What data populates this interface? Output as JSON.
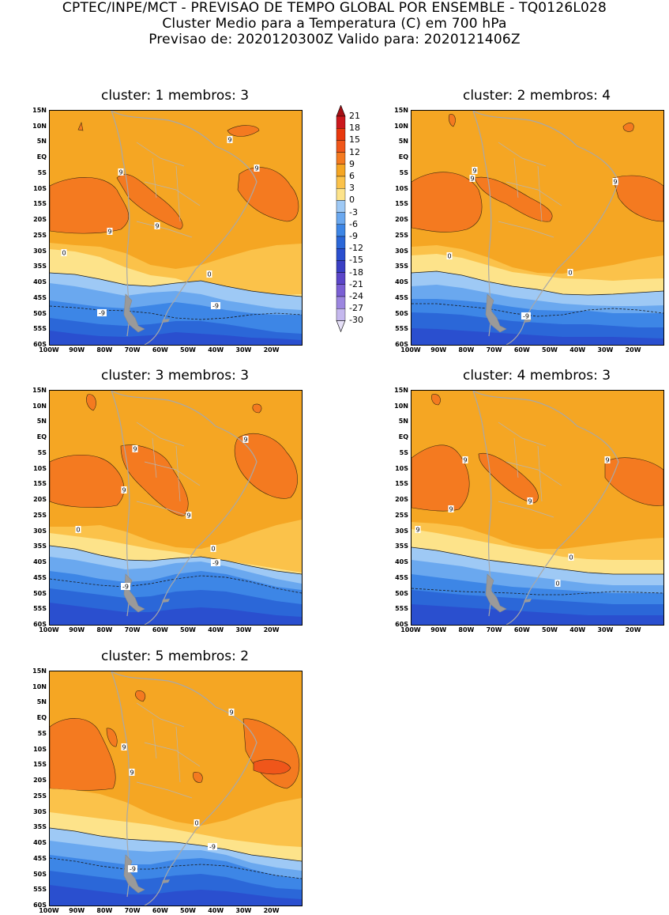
{
  "header": {
    "line1": "CPTEC/INPE/MCT - PREVISAO DE TEMPO GLOBAL POR ENSEMBLE - TQ0126L028",
    "line2": "Cluster Medio para a Temperatura (C) em 700 hPa",
    "line3": "Previsao de: 2020120300Z   Valido para: 2020121406Z"
  },
  "axes": {
    "lat_labels": [
      "15N",
      "10N",
      "5N",
      "EQ",
      "5S",
      "10S",
      "15S",
      "20S",
      "25S",
      "30S",
      "35S",
      "40S",
      "45S",
      "50S",
      "55S",
      "60S"
    ],
    "lon_labels": [
      "100W",
      "90W",
      "80W",
      "70W",
      "60W",
      "50W",
      "40W",
      "30W",
      "20W"
    ]
  },
  "colorbar": {
    "levels": [
      "21",
      "18",
      "15",
      "12",
      "9",
      "6",
      "3",
      "0",
      "-3",
      "-6",
      "-9",
      "-12",
      "-15",
      "-18",
      "-21",
      "-24",
      "-27",
      "-30"
    ],
    "colors": [
      "#a50f15",
      "#cb181d",
      "#e8380d",
      "#f0561a",
      "#f47a20",
      "#f5a623",
      "#fbc24a",
      "#fde38a",
      "#9ec9f5",
      "#6aa8ef",
      "#3d86e6",
      "#2b67d8",
      "#2a4fcf",
      "#3a3fc4",
      "#5b45c8",
      "#7a5fd4",
      "#9c86e0",
      "#c5b8ee",
      "#e6e0f8"
    ]
  },
  "clusters": [
    {
      "label": "cluster:  1   membros:  3",
      "number": "1",
      "members": "3",
      "contour_labels": [
        "9",
        "9",
        "9",
        "9",
        "9",
        "0",
        "0",
        "-9",
        "-9"
      ]
    },
    {
      "label": "cluster:  2   membros:  4",
      "number": "2",
      "members": "4",
      "contour_labels": [
        "9",
        "9",
        "9",
        "0",
        "0",
        "-9"
      ]
    },
    {
      "label": "cluster:  3   membros:  3",
      "number": "3",
      "members": "3",
      "contour_labels": [
        "9",
        "9",
        "9",
        "9",
        "0",
        "0",
        "-9",
        "-9"
      ]
    },
    {
      "label": "cluster:  4   membros:  3",
      "number": "4",
      "members": "3",
      "contour_labels": [
        "9",
        "9",
        "9",
        "9",
        "9",
        "0",
        "0",
        "-9"
      ]
    },
    {
      "label": "cluster:  5   membros:  2",
      "number": "5",
      "members": "2",
      "contour_labels": [
        "9",
        "9",
        "9",
        "0",
        "-9",
        "-9"
      ]
    }
  ]
}
